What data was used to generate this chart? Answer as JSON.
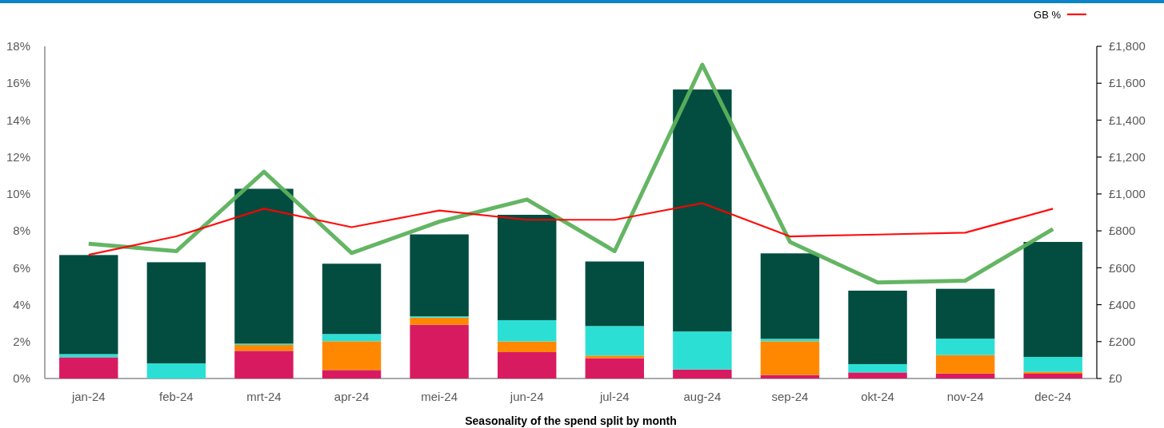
{
  "chart_data": {
    "type": "bar",
    "title": "Seasonality of the spend split by month",
    "categories": [
      "jan-24",
      "feb-24",
      "mrt-24",
      "apr-24",
      "mei-24",
      "jun-24",
      "jul-24",
      "aug-24",
      "sep-24",
      "okt-24",
      "nov-24",
      "dec-24"
    ],
    "stacked": true,
    "series": [
      {
        "color": "#d81b60",
        "axis": "y2",
        "values": [
          115,
          0,
          150,
          46,
          291,
          143,
          110,
          49,
          19,
          33,
          27,
          26
        ]
      },
      {
        "color": "#ff8800",
        "axis": "y2",
        "values": [
          0,
          0,
          32,
          156,
          39,
          58,
          14,
          0,
          183,
          0,
          100,
          10
        ]
      },
      {
        "color": "#2cdfd5",
        "axis": "y2",
        "values": [
          17,
          82,
          7,
          39,
          7,
          115,
          160,
          206,
          13,
          45,
          89,
          81
        ]
      },
      {
        "color": "#024d40",
        "axis": "y2",
        "values": [
          537,
          548,
          839,
          381,
          444,
          571,
          350,
          1311,
          463,
          398,
          270,
          623
        ]
      },
      {
        "type": "line",
        "color": "#5cb15c",
        "values": [
          7.3,
          6.9,
          11.2,
          6.8,
          8.5,
          9.7,
          6.9,
          17.0,
          7.4,
          5.2,
          5.3,
          8.1
        ]
      },
      {
        "type": "line",
        "name": "GB %",
        "color": "#ff0000",
        "values": [
          6.7,
          7.7,
          9.2,
          8.2,
          9.1,
          8.6,
          8.6,
          9.5,
          7.7,
          7.8,
          7.9,
          9.2
        ]
      }
    ],
    "ylim": [
      0,
      18
    ],
    "yticks": [
      {
        "value": 0,
        "label": "0%"
      },
      {
        "value": 2,
        "label": "2%"
      },
      {
        "value": 4,
        "label": "4%"
      },
      {
        "value": 6,
        "label": "6%"
      },
      {
        "value": 8,
        "label": "8%"
      },
      {
        "value": 10,
        "label": "10%"
      },
      {
        "value": 12,
        "label": "12%"
      },
      {
        "value": 14,
        "label": "14%"
      },
      {
        "value": 16,
        "label": "16%"
      },
      {
        "value": 18,
        "label": "18%"
      }
    ],
    "y2lim": [
      0,
      1800
    ],
    "y2ticks": [
      {
        "value": 0,
        "label": "£0"
      },
      {
        "value": 200,
        "label": "£200"
      },
      {
        "value": 400,
        "label": "£400"
      },
      {
        "value": 600,
        "label": "£600"
      },
      {
        "value": 800,
        "label": "£800"
      },
      {
        "value": 1000,
        "label": "£1,000"
      },
      {
        "value": 1200,
        "label": "£1,200"
      },
      {
        "value": 1400,
        "label": "£1,400"
      },
      {
        "value": 1600,
        "label": "£1,600"
      },
      {
        "value": 1800,
        "label": "£1,800"
      }
    ],
    "legend": "top right"
  }
}
